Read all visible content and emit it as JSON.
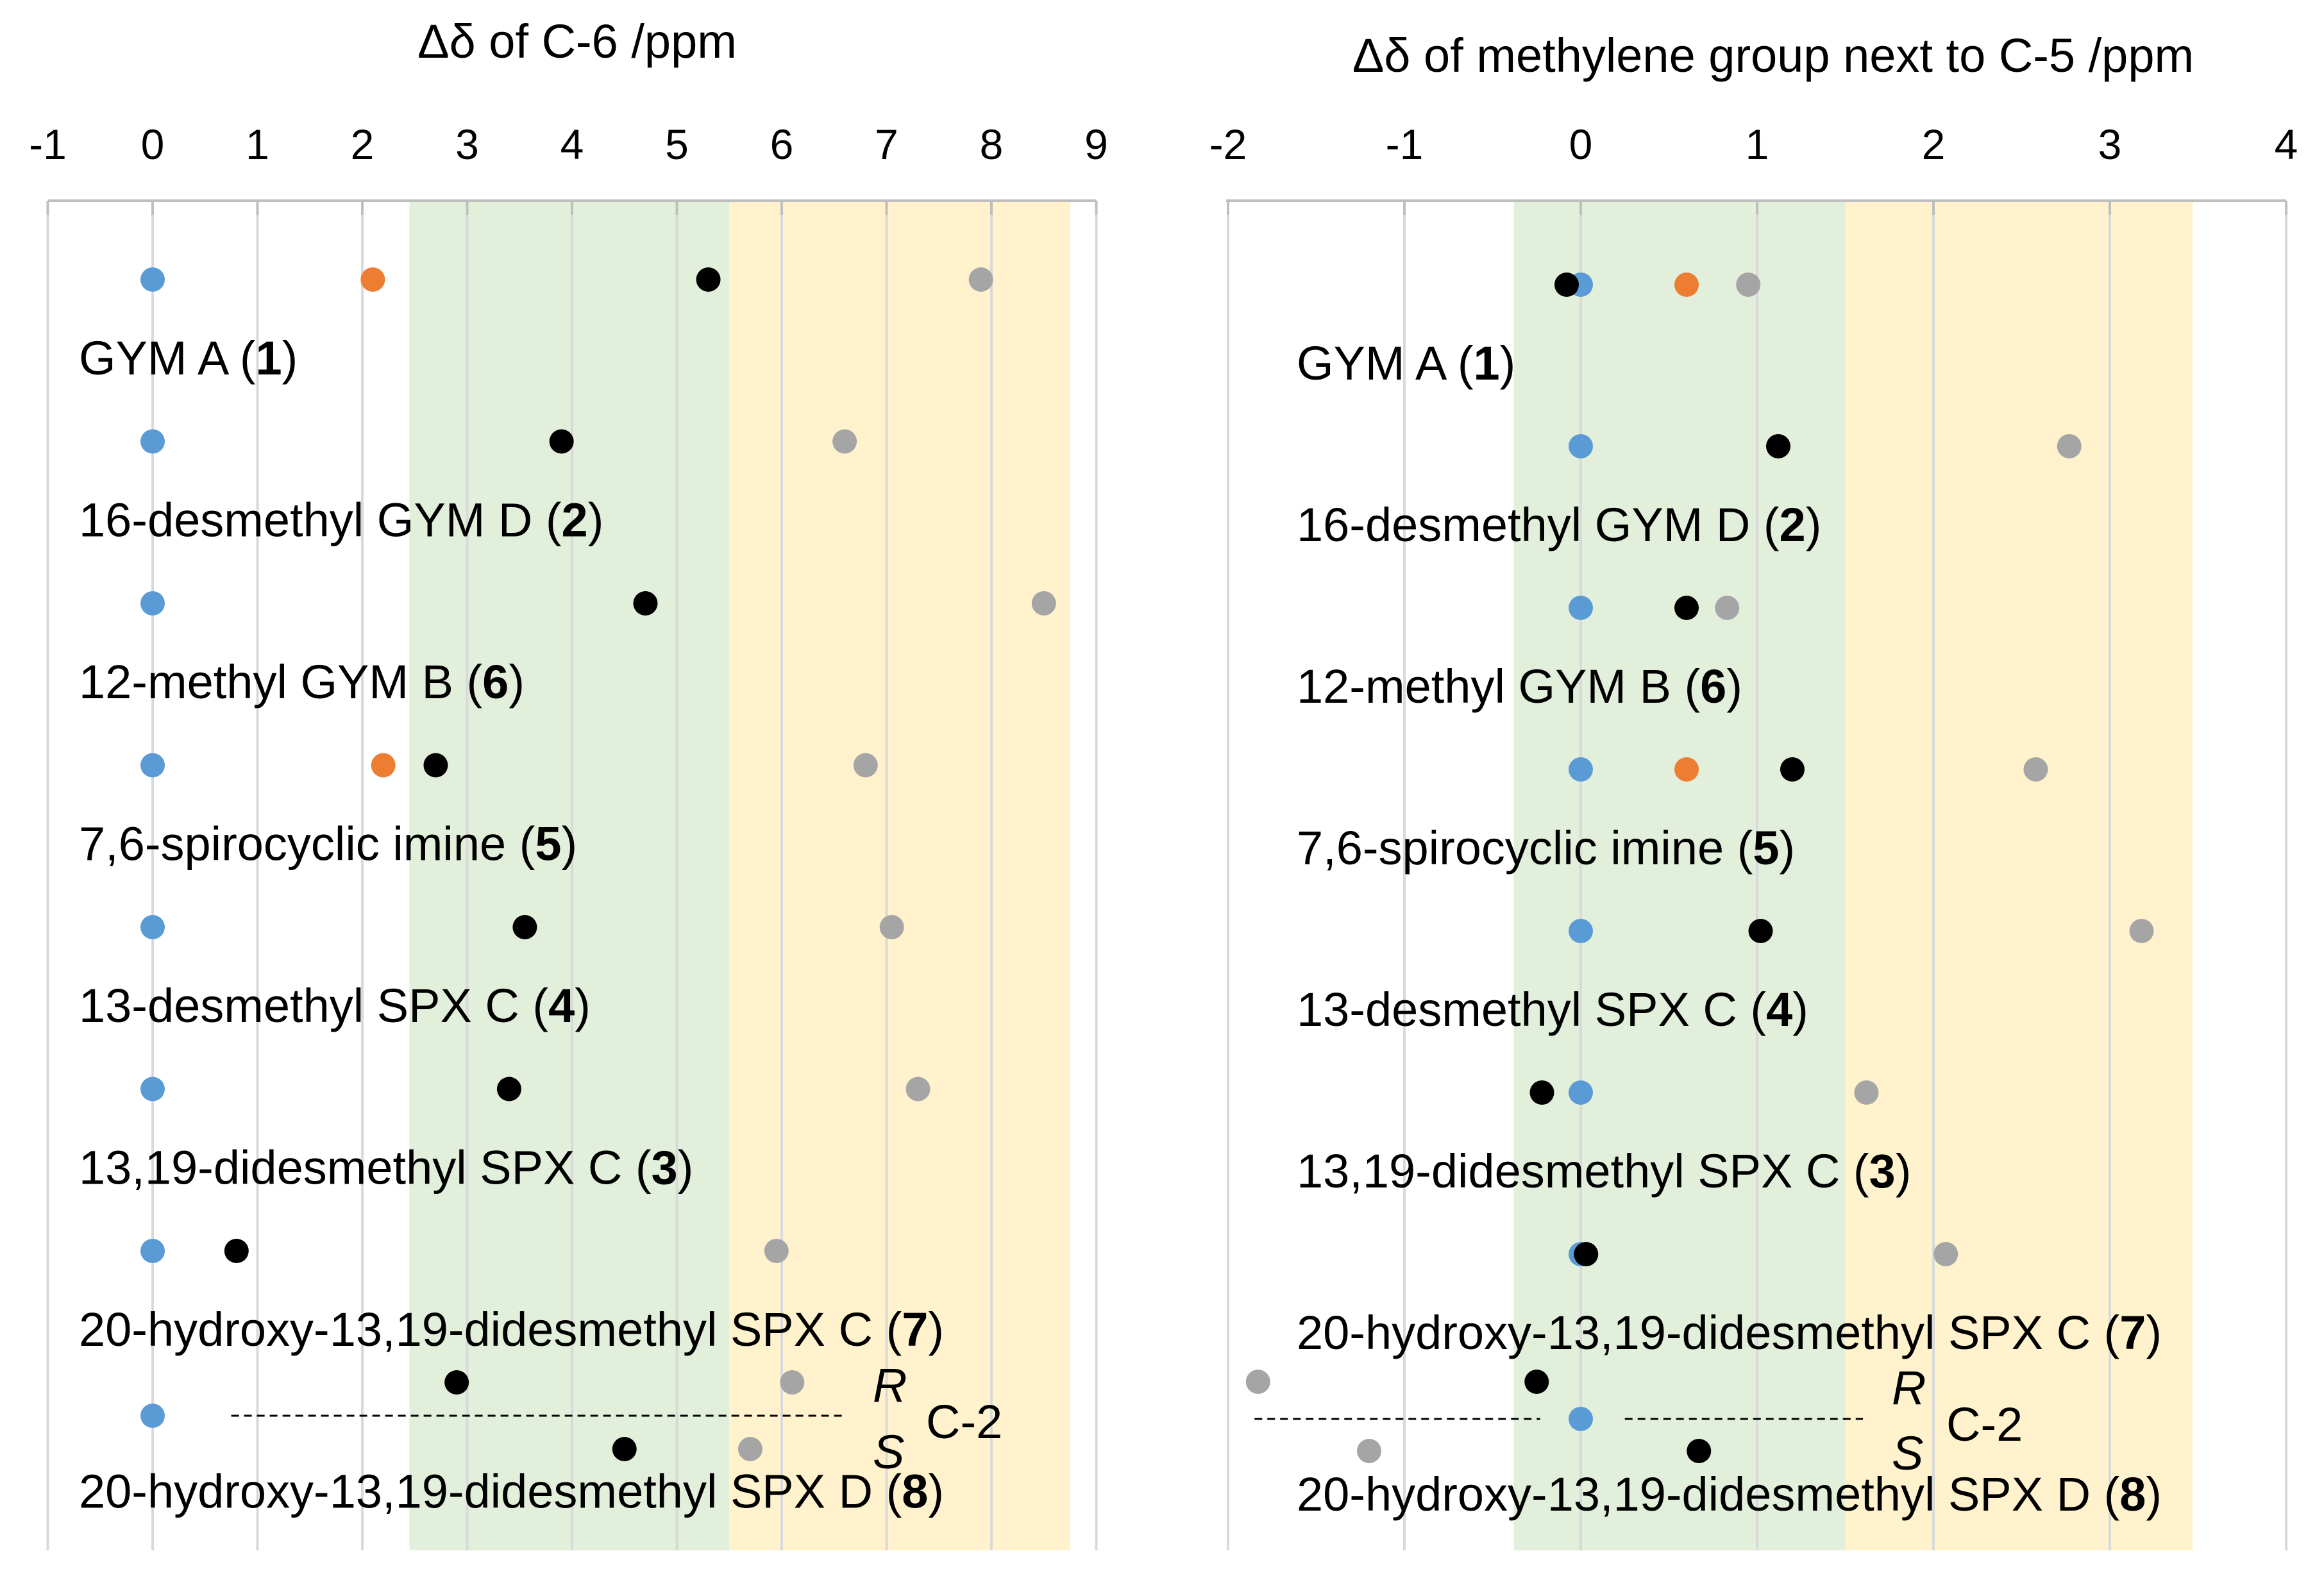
{
  "chart_data": [
    {
      "type": "scatter",
      "title": "Δδ of C-6 /ppm",
      "xlim": [
        -1,
        9
      ],
      "x_ticks": [
        "-1",
        "0",
        "1",
        "2",
        "3",
        "4",
        "5",
        "6",
        "7",
        "8",
        "9"
      ],
      "bands": [
        {
          "from": 2.45,
          "to": 5.5,
          "color": "#e2efda"
        },
        {
          "from": 5.5,
          "to": 8.75,
          "color": "#fff2cc"
        }
      ],
      "rows": [
        {
          "label": "GYM A (",
          "num": "1",
          "close": ")",
          "points": [
            {
              "x": 0,
              "color": "#5b9bd5"
            },
            {
              "x": 2.1,
              "color": "#ed7d31"
            },
            {
              "x": 5.3,
              "color": "#000000"
            },
            {
              "x": 7.9,
              "color": "#a5a5a5"
            }
          ]
        },
        {
          "label": "16-desmethyl GYM D (",
          "num": "2",
          "close": ")",
          "points": [
            {
              "x": 0,
              "color": "#5b9bd5"
            },
            {
              "x": 3.9,
              "color": "#000000"
            },
            {
              "x": 6.6,
              "color": "#a5a5a5"
            }
          ]
        },
        {
          "label": "12-methyl GYM B (",
          "num": "6",
          "close": ")",
          "points": [
            {
              "x": 0,
              "color": "#5b9bd5"
            },
            {
              "x": 4.7,
              "color": "#000000"
            },
            {
              "x": 8.5,
              "color": "#a5a5a5"
            }
          ]
        },
        {
          "label": "7,6-spirocyclic imine (",
          "num": "5",
          "close": ")",
          "points": [
            {
              "x": 0,
              "color": "#5b9bd5"
            },
            {
              "x": 2.2,
              "color": "#ed7d31"
            },
            {
              "x": 2.7,
              "color": "#000000"
            },
            {
              "x": 6.8,
              "color": "#a5a5a5"
            }
          ]
        },
        {
          "label": "13-desmethyl SPX C (",
          "num": "4",
          "close": ")",
          "points": [
            {
              "x": 0,
              "color": "#5b9bd5"
            },
            {
              "x": 3.55,
              "color": "#000000"
            },
            {
              "x": 7.05,
              "color": "#a5a5a5"
            }
          ]
        },
        {
          "label": "13,19-didesmethyl SPX C (",
          "num": "3",
          "close": ")",
          "points": [
            {
              "x": 0,
              "color": "#5b9bd5"
            },
            {
              "x": 3.4,
              "color": "#000000"
            },
            {
              "x": 7.3,
              "color": "#a5a5a5"
            }
          ]
        },
        {
          "label": "20-hydroxy-13,19-didesmethyl SPX C (",
          "num": "7",
          "close": ")",
          "points": [
            {
              "x": 0,
              "color": "#5b9bd5"
            },
            {
              "x": 0.8,
              "color": "#000000"
            },
            {
              "x": 5.95,
              "color": "#a5a5a5"
            }
          ]
        },
        {
          "label": "20-hydroxy-13,19-didesmethyl SPX D (",
          "num": "8",
          "close": ")",
          "points": [
            {
              "x": 0,
              "color": "#5b9bd5",
              "level": "mid"
            },
            {
              "x": 2.9,
              "color": "#000000",
              "level": "R"
            },
            {
              "x": 6.1,
              "color": "#a5a5a5",
              "level": "R"
            },
            {
              "x": 4.5,
              "color": "#000000",
              "level": "S"
            },
            {
              "x": 5.7,
              "color": "#a5a5a5",
              "level": "S"
            }
          ],
          "guides": [
            {
              "from": 0.75,
              "to": 6.6
            }
          ]
        }
      ]
    },
    {
      "type": "scatter",
      "title": "Δδ of methylene group next to C-5 /ppm",
      "xlim": [
        -2,
        4
      ],
      "x_ticks": [
        "-2",
        "-1",
        "0",
        "1",
        "2",
        "3",
        "4"
      ],
      "bands": [
        {
          "from": -0.38,
          "to": 1.5,
          "color": "#e2efda"
        },
        {
          "from": 1.5,
          "to": 3.47,
          "color": "#fff2cc"
        }
      ],
      "rows": [
        {
          "label": "GYM A (",
          "num": "1",
          "close": ")",
          "points": [
            {
              "x": 0,
              "color": "#5b9bd5"
            },
            {
              "x": -0.08,
              "color": "#000000"
            },
            {
              "x": 0.6,
              "color": "#ed7d31"
            },
            {
              "x": 0.95,
              "color": "#a5a5a5"
            }
          ]
        },
        {
          "label": "16-desmethyl GYM D (",
          "num": "2",
          "close": ")",
          "points": [
            {
              "x": 0,
              "color": "#5b9bd5"
            },
            {
              "x": 1.12,
              "color": "#000000"
            },
            {
              "x": 2.77,
              "color": "#a5a5a5"
            }
          ]
        },
        {
          "label": "12-methyl GYM B (",
          "num": "6",
          "close": ")",
          "points": [
            {
              "x": 0,
              "color": "#5b9bd5"
            },
            {
              "x": 0.6,
              "color": "#000000"
            },
            {
              "x": 0.83,
              "color": "#a5a5a5"
            }
          ]
        },
        {
          "label": "7,6-spirocyclic imine (",
          "num": "5",
          "close": ")",
          "points": [
            {
              "x": 0,
              "color": "#5b9bd5"
            },
            {
              "x": 0.6,
              "color": "#ed7d31"
            },
            {
              "x": 1.2,
              "color": "#000000"
            },
            {
              "x": 2.58,
              "color": "#a5a5a5"
            }
          ]
        },
        {
          "label": "13-desmethyl SPX C (",
          "num": "4",
          "close": ")",
          "points": [
            {
              "x": 0,
              "color": "#5b9bd5"
            },
            {
              "x": 1.02,
              "color": "#000000"
            },
            {
              "x": 3.18,
              "color": "#a5a5a5"
            }
          ]
        },
        {
          "label": "13,19-didesmethyl SPX C (",
          "num": "3",
          "close": ")",
          "points": [
            {
              "x": -0.22,
              "color": "#000000"
            },
            {
              "x": 0,
              "color": "#5b9bd5"
            },
            {
              "x": 1.62,
              "color": "#a5a5a5"
            }
          ]
        },
        {
          "label": "20-hydroxy-13,19-didesmethyl SPX C (",
          "num": "7",
          "close": ")",
          "points": [
            {
              "x": 0,
              "color": "#5b9bd5"
            },
            {
              "x": 0.03,
              "color": "#000000"
            },
            {
              "x": 2.07,
              "color": "#a5a5a5"
            }
          ]
        },
        {
          "label": "20-hydroxy-13,19-didesmethyl SPX D (",
          "num": "8",
          "close": ")",
          "points": [
            {
              "x": 0,
              "color": "#5b9bd5",
              "level": "mid"
            },
            {
              "x": -1.83,
              "color": "#a5a5a5",
              "level": "R"
            },
            {
              "x": -0.25,
              "color": "#000000",
              "level": "R"
            },
            {
              "x": -1.2,
              "color": "#a5a5a5",
              "level": "S"
            },
            {
              "x": 0.67,
              "color": "#000000",
              "level": "S"
            }
          ],
          "guides": [
            {
              "from": -1.85,
              "to": -0.23
            },
            {
              "from": 0.25,
              "to": 1.6
            }
          ]
        }
      ]
    }
  ],
  "annotations": {
    "r_label": "R",
    "s_label": "S",
    "c2_label": "C-2"
  }
}
